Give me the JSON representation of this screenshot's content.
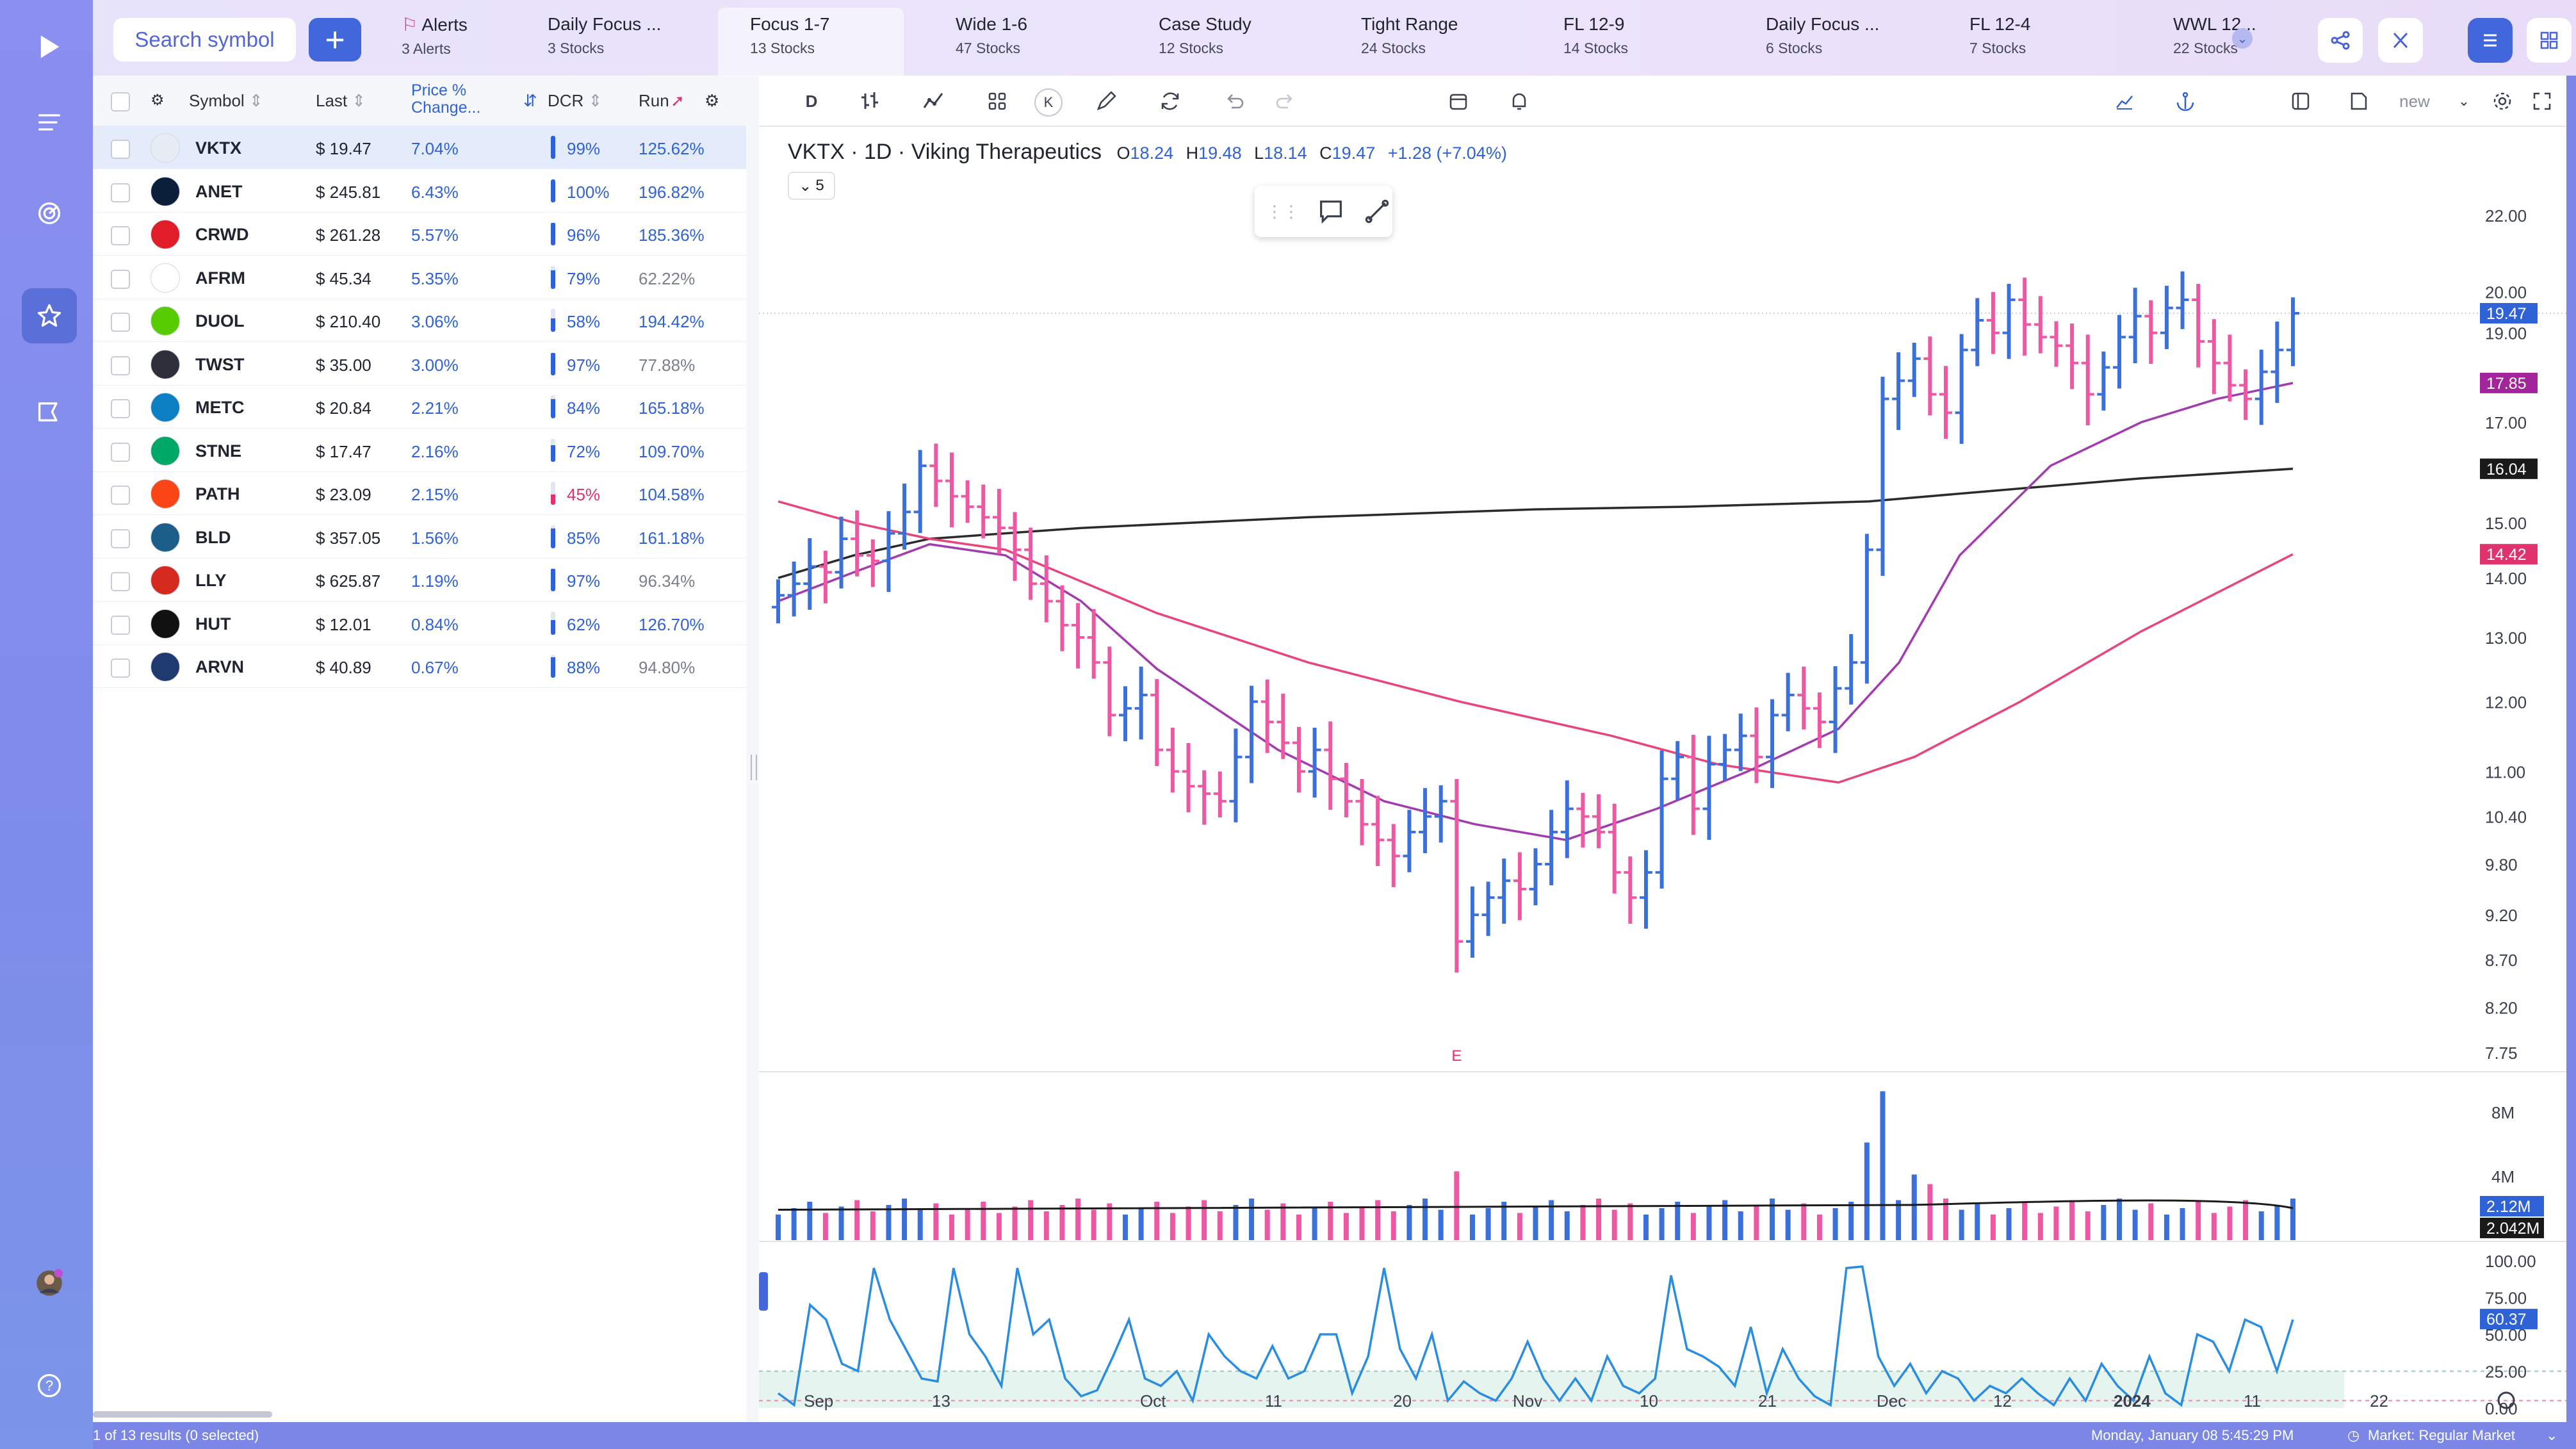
{
  "topbar": {
    "search_placeholder": "Search symbol",
    "add_label": "+",
    "tabs": [
      {
        "name": "Alerts",
        "sub": "3 Alerts"
      },
      {
        "name": "Daily Focus ...",
        "sub": "3 Stocks"
      },
      {
        "name": "Focus 1-7",
        "sub": "13 Stocks"
      },
      {
        "name": "Wide 1-6",
        "sub": "47 Stocks"
      },
      {
        "name": "Case Study",
        "sub": "12 Stocks"
      },
      {
        "name": "Tight Range",
        "sub": "24 Stocks"
      },
      {
        "name": "FL 12-9",
        "sub": "14 Stocks"
      },
      {
        "name": "Daily Focus ...",
        "sub": "6 Stocks"
      },
      {
        "name": "FL 12-4",
        "sub": "7 Stocks"
      },
      {
        "name": "WWL 12...",
        "sub": "22 Stocks"
      }
    ],
    "icons": [
      "share-icon",
      "x-icon",
      "list-view-icon",
      "grid-view-icon"
    ]
  },
  "watchlist": {
    "headers": {
      "symbol": "Symbol",
      "last": "Last",
      "change": "Price % Change...",
      "dcr": "DCR",
      "run": "Run"
    },
    "rows": [
      {
        "symbol": "VKTX",
        "last": "$ 19.47",
        "change": "7.04%",
        "dcr": "99%",
        "dcr_level": 0.99,
        "run": "125.62%",
        "logo_color": "#e8ecf4",
        "selected": true
      },
      {
        "symbol": "ANET",
        "last": "$ 245.81",
        "change": "6.43%",
        "dcr": "100%",
        "dcr_level": 1.0,
        "run": "196.82%",
        "logo_color": "#0c1f3a"
      },
      {
        "symbol": "CRWD",
        "last": "$ 261.28",
        "change": "5.57%",
        "dcr": "96%",
        "dcr_level": 0.96,
        "run": "185.36%",
        "logo_color": "#e11d2a"
      },
      {
        "symbol": "AFRM",
        "last": "$ 45.34",
        "change": "5.35%",
        "dcr": "79%",
        "dcr_level": 0.79,
        "run": "62.22%",
        "logo_color": "#ffffff"
      },
      {
        "symbol": "DUOL",
        "last": "$ 210.40",
        "change": "3.06%",
        "dcr": "58%",
        "dcr_level": 0.58,
        "run": "194.42%",
        "logo_color": "#58cc02"
      },
      {
        "symbol": "TWST",
        "last": "$ 35.00",
        "change": "3.00%",
        "dcr": "97%",
        "dcr_level": 0.97,
        "run": "77.88%",
        "logo_color": "#2d2f3a"
      },
      {
        "symbol": "METC",
        "last": "$ 20.84",
        "change": "2.21%",
        "dcr": "84%",
        "dcr_level": 0.84,
        "run": "165.18%",
        "logo_color": "#0b7fc1"
      },
      {
        "symbol": "STNE",
        "last": "$ 17.47",
        "change": "2.16%",
        "dcr": "72%",
        "dcr_level": 0.72,
        "run": "109.70%",
        "logo_color": "#00a868"
      },
      {
        "symbol": "PATH",
        "last": "$ 23.09",
        "change": "2.15%",
        "dcr": "45%",
        "dcr_level": 0.45,
        "run": "104.58%",
        "logo_color": "#fa4616"
      },
      {
        "symbol": "BLD",
        "last": "$ 357.05",
        "change": "1.56%",
        "dcr": "85%",
        "dcr_level": 0.85,
        "run": "161.18%",
        "logo_color": "#1b5e8a"
      },
      {
        "symbol": "LLY",
        "last": "$ 625.87",
        "change": "1.19%",
        "dcr": "97%",
        "dcr_level": 0.97,
        "run": "96.34%",
        "logo_color": "#d52b1e"
      },
      {
        "symbol": "HUT",
        "last": "$ 12.01",
        "change": "0.84%",
        "dcr": "62%",
        "dcr_level": 0.62,
        "run": "126.70%",
        "logo_color": "#111111"
      },
      {
        "symbol": "ARVN",
        "last": "$ 40.89",
        "change": "0.67%",
        "dcr": "88%",
        "dcr_level": 0.88,
        "run": "94.80%",
        "logo_color": "#1f3a6e"
      }
    ],
    "footer": "1 of 13 results (0 selected)"
  },
  "chart_toolbar": {
    "interval": "D",
    "k_label": "K",
    "layout_label": "new",
    "icons": [
      "bar-style-icon",
      "indicators-icon",
      "templates-icon",
      "drawing-icon",
      "compare-icon",
      "undo-icon",
      "redo-icon",
      "calendar-icon",
      "alert-icon",
      "line-chart-icon",
      "anchor-icon",
      "layout-icon",
      "save-icon",
      "settings-icon",
      "fullscreen-icon"
    ]
  },
  "chart_header": {
    "title": "VKTX · 1D · Viking Therapeutics",
    "o_label": "O",
    "o": "18.24",
    "h_label": "H",
    "h": "19.48",
    "l_label": "L",
    "l": "18.14",
    "c_label": "C",
    "c": "19.47",
    "change": "+1.28 (+7.04%)",
    "indicator_collapse": "5"
  },
  "chart_data": {
    "type": "bar",
    "symbol": "VKTX",
    "interval": "1D",
    "price_axis": [
      "22.00",
      "20.00",
      "19.00",
      "17.00",
      "15.00",
      "14.00",
      "13.00",
      "12.00",
      "11.00",
      "10.40",
      "9.80",
      "9.20",
      "8.70",
      "8.20",
      "7.75"
    ],
    "price_axis_values": [
      22.0,
      20.0,
      19.0,
      17.0,
      15.0,
      14.0,
      13.0,
      12.0,
      11.0,
      10.4,
      9.8,
      9.2,
      8.7,
      8.2,
      7.75
    ],
    "y_scale": "log",
    "price_tags": [
      {
        "label": "19.47",
        "color": "#2f62d6"
      },
      {
        "label": "17.85",
        "color": "#a3259b"
      },
      {
        "label": "16.04",
        "color": "#1a1a1a"
      },
      {
        "label": "14.42",
        "color": "#e0336e"
      }
    ],
    "time_axis": [
      "Sep",
      "13",
      "Oct",
      "11",
      "20",
      "Nov",
      "10",
      "21",
      "Dec",
      "12",
      "2024",
      "11",
      "22"
    ],
    "earnings_marker": "E",
    "volume_axis": [
      "8M",
      "4M"
    ],
    "volume_tags": [
      {
        "label": "2.12M",
        "color": "#2f62d6"
      },
      {
        "label": "2.042M",
        "color": "#1a1a1a"
      }
    ],
    "osc_axis": [
      "100.00",
      "75.00",
      "50.00",
      "25.00",
      "0.00"
    ],
    "osc_tag": {
      "label": "60.37",
      "color": "#2f62d6"
    },
    "colors": {
      "up": "#3b6fd9",
      "down": "#ee57a3",
      "ma_fast": "#a33bb0",
      "ma_mid": "#e8457a",
      "ma_slow": "#2b2b2b",
      "osc": "#2a8de0"
    }
  },
  "status": {
    "datetime": "Monday, January 08  5:45:29  PM",
    "market": "Market: Regular Market"
  }
}
